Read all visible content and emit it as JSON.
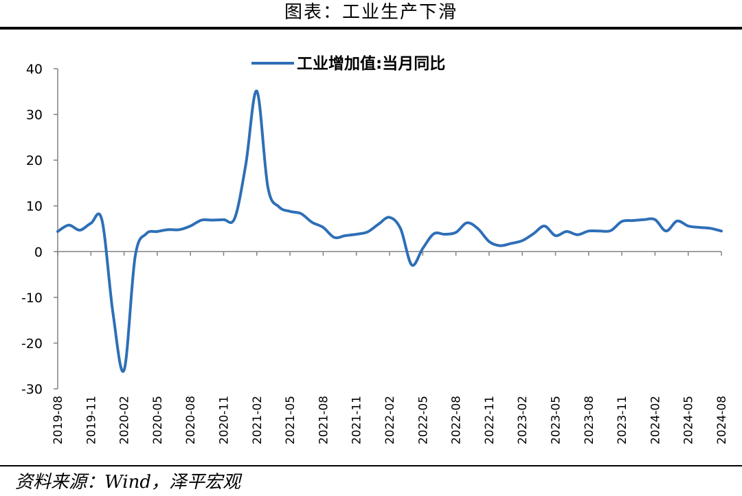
{
  "page": {
    "title": "图表：工业生产下滑",
    "source": "资料来源：Wind，泽平宏观"
  },
  "chart_data": {
    "type": "line",
    "ylim": [
      -30,
      40
    ],
    "yticks": [
      40,
      30,
      20,
      10,
      0,
      -10,
      -20,
      -30
    ],
    "xtick_labels": [
      "2019-08",
      "2019-11",
      "2020-02",
      "2020-05",
      "2020-08",
      "2020-11",
      "2021-02",
      "2021-05",
      "2021-08",
      "2021-11",
      "2022-02",
      "2022-05",
      "2022-08",
      "2022-11",
      "2023-02",
      "2023-05",
      "2023-08",
      "2023-11",
      "2024-02",
      "2024-05",
      "2024-08"
    ],
    "x": [
      "2019-08",
      "2019-09",
      "2019-10",
      "2019-11",
      "2019-12",
      "2020-01",
      "2020-02",
      "2020-03",
      "2020-04",
      "2020-05",
      "2020-06",
      "2020-07",
      "2020-08",
      "2020-09",
      "2020-10",
      "2020-11",
      "2020-12",
      "2021-01",
      "2021-02",
      "2021-03",
      "2021-04",
      "2021-05",
      "2021-06",
      "2021-07",
      "2021-08",
      "2021-09",
      "2021-10",
      "2021-11",
      "2021-12",
      "2022-01",
      "2022-02",
      "2022-03",
      "2022-04",
      "2022-05",
      "2022-06",
      "2022-07",
      "2022-08",
      "2022-09",
      "2022-10",
      "2022-11",
      "2022-12",
      "2023-01",
      "2023-02",
      "2023-03",
      "2023-04",
      "2023-05",
      "2023-06",
      "2023-07",
      "2023-08",
      "2023-09",
      "2023-10",
      "2023-11",
      "2023-12",
      "2024-01",
      "2024-02",
      "2024-03",
      "2024-04",
      "2024-05",
      "2024-06",
      "2024-07",
      "2024-08"
    ],
    "series": [
      {
        "name": "工业增加值:当月同比",
        "color": "#2e6fb7",
        "values": [
          4.4,
          5.8,
          4.7,
          6.2,
          6.9,
          -13.5,
          -25.9,
          -1.1,
          3.9,
          4.4,
          4.8,
          4.8,
          5.6,
          6.9,
          6.9,
          7.0,
          7.3,
          19.0,
          35.1,
          14.1,
          9.8,
          8.8,
          8.3,
          6.4,
          5.3,
          3.1,
          3.5,
          3.8,
          4.3,
          6.0,
          7.5,
          5.0,
          -2.9,
          0.7,
          3.9,
          3.8,
          4.2,
          6.3,
          5.0,
          2.2,
          1.3,
          1.8,
          2.4,
          3.9,
          5.6,
          3.5,
          4.4,
          3.7,
          4.5,
          4.5,
          4.6,
          6.6,
          6.8,
          7.0,
          7.0,
          4.5,
          6.7,
          5.6,
          5.3,
          5.1,
          4.5
        ]
      }
    ],
    "grid": false,
    "legend": "top-center"
  }
}
